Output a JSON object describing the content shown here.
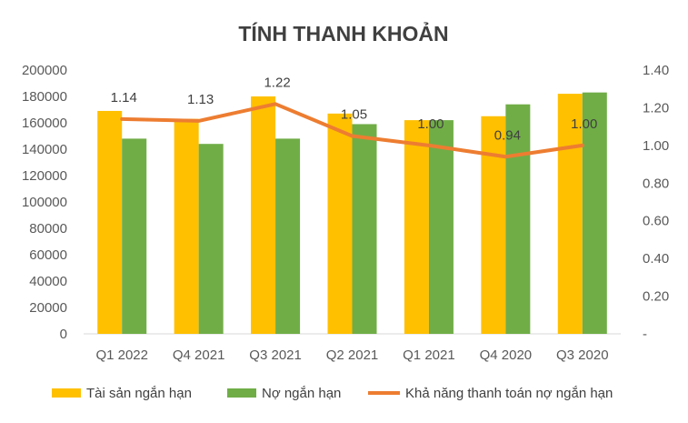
{
  "chart_data": {
    "type": "bar",
    "title": "TÍNH THANH KHOẢN",
    "categories": [
      "Q1 2022",
      "Q4 2021",
      "Q3 2021",
      "Q2 2021",
      "Q1 2021",
      "Q4 2020",
      "Q3 2020"
    ],
    "series": [
      {
        "name": "Tài sản ngắn hạn",
        "type": "bar",
        "axis": "left",
        "color": "#FFC000",
        "values": [
          169000,
          163000,
          180000,
          167000,
          162000,
          165000,
          182000
        ]
      },
      {
        "name": "Nợ ngắn hạn",
        "type": "bar",
        "axis": "left",
        "color": "#70AD47",
        "values": [
          148000,
          144000,
          148000,
          159000,
          162000,
          174000,
          183000
        ]
      },
      {
        "name": "Khả năng thanh toán nợ ngắn hạn",
        "type": "line",
        "axis": "right",
        "color": "#ED7D31",
        "values": [
          1.14,
          1.13,
          1.22,
          1.05,
          1.0,
          0.94,
          1.0
        ],
        "labels": [
          "1.14",
          "1.13",
          "1.22",
          "1.05",
          "1.00",
          "0.94",
          "1.00"
        ]
      }
    ],
    "y_left": {
      "min": 0,
      "max": 200000,
      "step": 20000,
      "ticks": [
        "0",
        "20000",
        "40000",
        "60000",
        "80000",
        "100000",
        "120000",
        "140000",
        "160000",
        "180000",
        "200000"
      ]
    },
    "y_right": {
      "min": 0,
      "max": 1.4,
      "step": 0.2,
      "ticks": [
        "-",
        "0.20",
        "0.40",
        "0.60",
        "0.80",
        "1.00",
        "1.20",
        "1.40"
      ]
    },
    "grid": false,
    "legend": "bottom"
  }
}
